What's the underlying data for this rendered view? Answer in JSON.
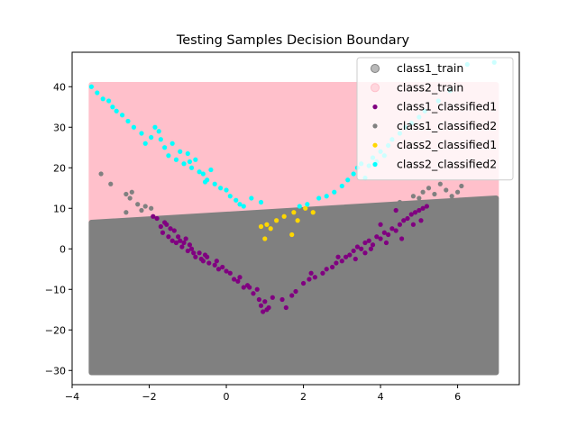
{
  "chart_data": {
    "type": "scatter",
    "title": "Testing Samples Decision Boundary",
    "xlabel": "",
    "ylabel": "",
    "xlim": [
      -4.0,
      7.6
    ],
    "ylim": [
      -33.5,
      48.5
    ],
    "xticks": [
      -4,
      -2,
      0,
      2,
      4,
      6
    ],
    "yticks": [
      -30,
      -20,
      -10,
      0,
      10,
      20,
      30,
      40
    ],
    "legend_position": "top-right",
    "decision_regions": {
      "x_range": [
        -3.5,
        7.0
      ],
      "y_range": [
        -30.5,
        40.5
      ],
      "boundary_line": {
        "x": [
          -3.5,
          7.0
        ],
        "y": [
          6.5,
          12.5
        ]
      },
      "below_color": "#808080",
      "above_color": "#ffc0cb",
      "below_series": "class1_train",
      "above_series": "class2_train"
    },
    "series": [
      {
        "name": "class1_train",
        "color": "#808080",
        "marker": "circle-translucent",
        "points": []
      },
      {
        "name": "class2_train",
        "color": "#ffc0cb",
        "marker": "circle-translucent",
        "points": []
      },
      {
        "name": "class1_classified1",
        "color": "#800080",
        "marker": "dot",
        "points": [
          [
            -1.9,
            8.0
          ],
          [
            -1.8,
            7.5
          ],
          [
            -1.7,
            5.5
          ],
          [
            -1.65,
            4.0
          ],
          [
            -1.6,
            6.5
          ],
          [
            -1.5,
            3.0
          ],
          [
            -1.45,
            5.0
          ],
          [
            -1.4,
            2.0
          ],
          [
            -1.35,
            4.5
          ],
          [
            -1.3,
            1.5
          ],
          [
            -1.25,
            3.0
          ],
          [
            -1.2,
            2.0
          ],
          [
            -1.15,
            0.5
          ],
          [
            -1.1,
            1.5
          ],
          [
            -1.0,
            -0.5
          ],
          [
            -0.95,
            1.0
          ],
          [
            -0.9,
            0.0
          ],
          [
            -0.85,
            -1.0
          ],
          [
            -0.8,
            -2.0
          ],
          [
            -0.7,
            -1.0
          ],
          [
            -0.65,
            -2.5
          ],
          [
            -0.6,
            -3.0
          ],
          [
            -0.5,
            -2.0
          ],
          [
            -0.45,
            -3.5
          ],
          [
            -0.3,
            -4.0
          ],
          [
            -0.2,
            -5.0
          ],
          [
            -0.1,
            -4.5
          ],
          [
            0.0,
            -5.5
          ],
          [
            0.1,
            -6.0
          ],
          [
            0.2,
            -7.5
          ],
          [
            0.3,
            -8.0
          ],
          [
            0.45,
            -9.5
          ],
          [
            0.55,
            -9.0
          ],
          [
            0.7,
            -11.0
          ],
          [
            0.8,
            -10.0
          ],
          [
            0.85,
            -12.5
          ],
          [
            0.9,
            -14.0
          ],
          [
            0.95,
            -15.5
          ],
          [
            1.0,
            -13.0
          ],
          [
            1.1,
            -14.5
          ],
          [
            1.2,
            -12.0
          ],
          [
            1.45,
            -12.5
          ],
          [
            1.55,
            -14.5
          ],
          [
            1.7,
            -11.5
          ],
          [
            1.8,
            -10.5
          ],
          [
            2.0,
            -8.5
          ],
          [
            2.15,
            -7.5
          ],
          [
            2.3,
            -7.0
          ],
          [
            2.5,
            -6.0
          ],
          [
            2.6,
            -5.0
          ],
          [
            2.75,
            -4.5
          ],
          [
            2.85,
            -3.5
          ],
          [
            3.0,
            -3.0
          ],
          [
            3.1,
            -2.0
          ],
          [
            3.2,
            -1.5
          ],
          [
            3.3,
            -0.5
          ],
          [
            3.4,
            0.5
          ],
          [
            3.5,
            0.0
          ],
          [
            3.6,
            1.5
          ],
          [
            3.7,
            2.0
          ],
          [
            3.8,
            1.0
          ],
          [
            3.9,
            3.0
          ],
          [
            4.0,
            2.5
          ],
          [
            4.1,
            4.0
          ],
          [
            4.2,
            3.5
          ],
          [
            4.3,
            5.0
          ],
          [
            4.4,
            4.5
          ],
          [
            4.5,
            6.0
          ],
          [
            4.6,
            7.0
          ],
          [
            4.7,
            7.5
          ],
          [
            4.8,
            8.5
          ],
          [
            4.9,
            9.0
          ],
          [
            5.0,
            9.5
          ],
          [
            5.1,
            10.0
          ],
          [
            5.2,
            10.5
          ],
          [
            4.4,
            9.5
          ],
          [
            4.0,
            6.0
          ],
          [
            3.6,
            -1.0
          ],
          [
            2.9,
            -2.0
          ],
          [
            2.2,
            -6.0
          ],
          [
            -1.55,
            6.0
          ],
          [
            -1.05,
            2.5
          ],
          [
            -0.55,
            -1.5
          ],
          [
            -0.25,
            -3.0
          ],
          [
            0.35,
            -7.0
          ],
          [
            0.6,
            -9.5
          ],
          [
            1.05,
            -15.0
          ],
          [
            3.35,
            -2.5
          ],
          [
            3.75,
            0.0
          ],
          [
            4.15,
            1.5
          ],
          [
            4.55,
            2.5
          ],
          [
            4.85,
            6.0
          ],
          [
            5.05,
            7.0
          ]
        ]
      },
      {
        "name": "class1_classified2",
        "color": "#808080",
        "marker": "dot",
        "points": [
          [
            -3.25,
            18.5
          ],
          [
            -3.0,
            16.0
          ],
          [
            -2.6,
            13.5
          ],
          [
            -2.5,
            12.5
          ],
          [
            -2.45,
            14.0
          ],
          [
            -2.3,
            11.0
          ],
          [
            -2.2,
            9.5
          ],
          [
            -2.6,
            9.0
          ],
          [
            -2.1,
            10.5
          ],
          [
            -1.95,
            10.0
          ],
          [
            4.85,
            13.0
          ],
          [
            5.0,
            12.5
          ],
          [
            5.1,
            14.0
          ],
          [
            5.25,
            15.0
          ],
          [
            5.4,
            13.5
          ],
          [
            5.55,
            16.0
          ],
          [
            5.7,
            14.5
          ],
          [
            5.85,
            13.0
          ],
          [
            6.0,
            14.0
          ],
          [
            6.1,
            15.5
          ],
          [
            4.5,
            11.5
          ]
        ]
      },
      {
        "name": "class2_classified1",
        "color": "#ffd700",
        "marker": "dot",
        "points": [
          [
            0.9,
            5.5
          ],
          [
            1.0,
            2.5
          ],
          [
            1.05,
            6.0
          ],
          [
            1.15,
            5.0
          ],
          [
            1.3,
            7.0
          ],
          [
            1.5,
            8.0
          ],
          [
            1.7,
            3.5
          ],
          [
            1.75,
            9.0
          ],
          [
            1.85,
            7.0
          ],
          [
            2.05,
            10.0
          ],
          [
            2.25,
            9.0
          ]
        ]
      },
      {
        "name": "class2_classified2",
        "color": "#00ffff",
        "marker": "dot",
        "points": [
          [
            -3.5,
            40.0
          ],
          [
            -3.35,
            38.5
          ],
          [
            -3.2,
            37.0
          ],
          [
            -3.05,
            36.5
          ],
          [
            -2.85,
            34.0
          ],
          [
            -2.7,
            33.0
          ],
          [
            -2.55,
            31.5
          ],
          [
            -2.4,
            30.0
          ],
          [
            -2.2,
            28.5
          ],
          [
            -2.1,
            26.0
          ],
          [
            -1.95,
            27.5
          ],
          [
            -1.85,
            30.0
          ],
          [
            -1.7,
            27.0
          ],
          [
            -1.6,
            25.0
          ],
          [
            -1.5,
            23.0
          ],
          [
            -1.4,
            26.0
          ],
          [
            -1.3,
            22.0
          ],
          [
            -1.2,
            24.0
          ],
          [
            -1.1,
            21.0
          ],
          [
            -1.0,
            23.5
          ],
          [
            -0.9,
            20.0
          ],
          [
            -0.8,
            22.0
          ],
          [
            -0.7,
            19.0
          ],
          [
            -0.6,
            18.5
          ],
          [
            -0.5,
            17.0
          ],
          [
            -0.4,
            19.5
          ],
          [
            -0.3,
            16.0
          ],
          [
            -0.15,
            15.0
          ],
          [
            0.0,
            14.5
          ],
          [
            0.1,
            13.0
          ],
          [
            0.25,
            12.0
          ],
          [
            0.35,
            11.0
          ],
          [
            0.45,
            10.5
          ],
          [
            0.65,
            12.5
          ],
          [
            0.9,
            11.5
          ],
          [
            1.9,
            10.5
          ],
          [
            2.1,
            11.0
          ],
          [
            2.4,
            12.5
          ],
          [
            2.6,
            13.0
          ],
          [
            2.8,
            14.0
          ],
          [
            3.0,
            15.5
          ],
          [
            3.15,
            17.0
          ],
          [
            3.3,
            18.5
          ],
          [
            3.4,
            20.0
          ],
          [
            3.5,
            21.0
          ],
          [
            3.6,
            17.5
          ],
          [
            3.7,
            20.5
          ],
          [
            3.8,
            22.5
          ],
          [
            3.9,
            21.5
          ],
          [
            4.0,
            24.0
          ],
          [
            4.1,
            23.0
          ],
          [
            4.2,
            25.5
          ],
          [
            4.3,
            27.0
          ],
          [
            4.5,
            28.5
          ],
          [
            4.65,
            30.0
          ],
          [
            4.8,
            31.0
          ],
          [
            5.0,
            32.5
          ],
          [
            5.15,
            34.0
          ],
          [
            6.25,
            45.5
          ],
          [
            6.95,
            46.0
          ],
          [
            5.5,
            36.5
          ],
          [
            5.8,
            39.0
          ],
          [
            -2.95,
            35.0
          ],
          [
            -1.75,
            29.0
          ],
          [
            -0.95,
            21.5
          ],
          [
            -0.55,
            16.5
          ]
        ]
      }
    ]
  }
}
